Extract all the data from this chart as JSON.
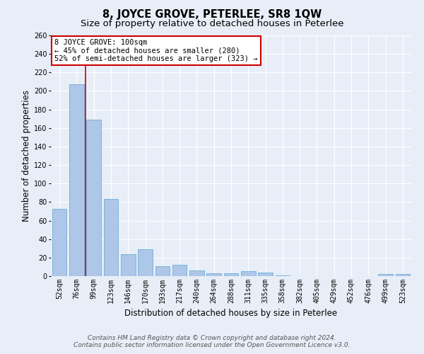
{
  "title": "8, JOYCE GROVE, PETERLEE, SR8 1QW",
  "subtitle": "Size of property relative to detached houses in Peterlee",
  "xlabel": "Distribution of detached houses by size in Peterlee",
  "ylabel": "Number of detached properties",
  "categories": [
    "52sqm",
    "76sqm",
    "99sqm",
    "123sqm",
    "146sqm",
    "170sqm",
    "193sqm",
    "217sqm",
    "240sqm",
    "264sqm",
    "288sqm",
    "311sqm",
    "335sqm",
    "358sqm",
    "382sqm",
    "405sqm",
    "429sqm",
    "452sqm",
    "476sqm",
    "499sqm",
    "523sqm"
  ],
  "values": [
    73,
    207,
    169,
    83,
    24,
    29,
    11,
    12,
    6,
    3,
    3,
    5,
    4,
    1,
    0,
    0,
    0,
    0,
    0,
    2,
    2
  ],
  "bar_color": "#aec6e8",
  "bar_edge_color": "#6baed6",
  "highlight_index": 2,
  "highlight_line_color": "#cc0000",
  "ylim": [
    0,
    260
  ],
  "yticks": [
    0,
    20,
    40,
    60,
    80,
    100,
    120,
    140,
    160,
    180,
    200,
    220,
    240,
    260
  ],
  "annotation_title": "8 JOYCE GROVE: 100sqm",
  "annotation_line1": "← 45% of detached houses are smaller (280)",
  "annotation_line2": "52% of semi-detached houses are larger (323) →",
  "annotation_box_color": "#ffffff",
  "annotation_box_edge": "#cc0000",
  "background_color": "#e8eef7",
  "grid_color": "#ffffff",
  "footer_line1": "Contains HM Land Registry data © Crown copyright and database right 2024.",
  "footer_line2": "Contains public sector information licensed under the Open Government Licence v3.0.",
  "title_fontsize": 10.5,
  "subtitle_fontsize": 9.5,
  "axis_label_fontsize": 8.5,
  "tick_fontsize": 7,
  "annotation_fontsize": 7.5,
  "footer_fontsize": 6.5
}
